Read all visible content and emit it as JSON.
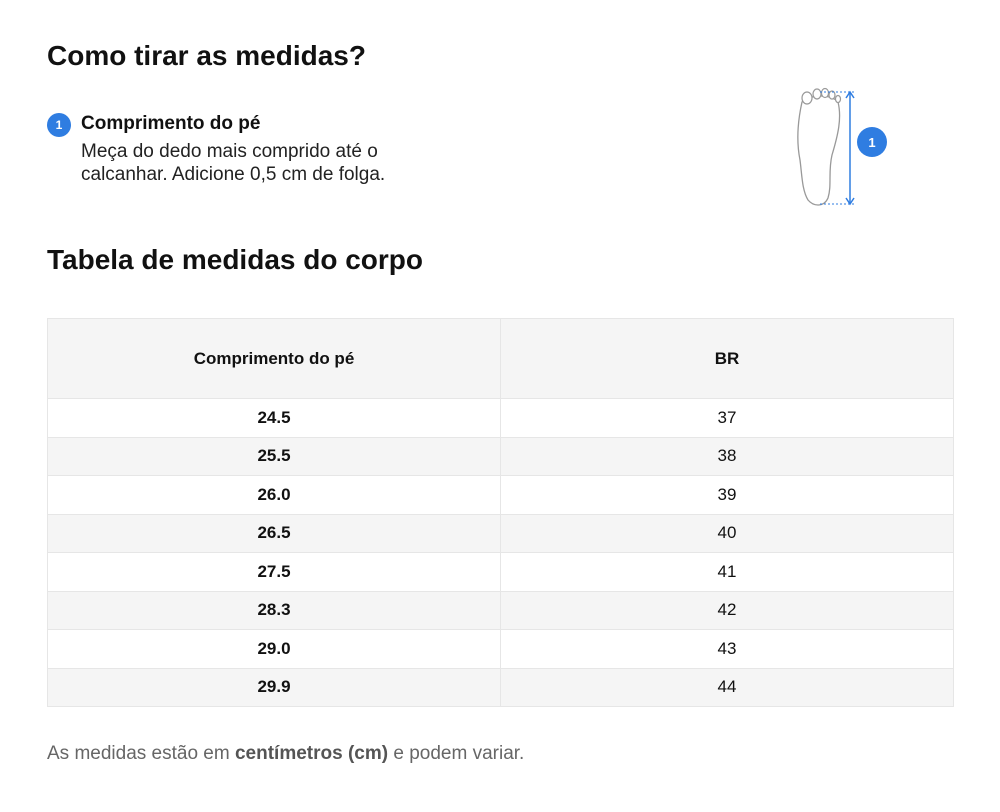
{
  "header": {
    "title": "Como tirar as medidas?"
  },
  "step": {
    "number": "1",
    "title": "Comprimento do pé",
    "text": "Meça do dedo mais comprido até o calcanhar. Adicione 0,5 cm de folga."
  },
  "figure": {
    "badge": "1"
  },
  "section": {
    "title": "Tabela de medidas do corpo"
  },
  "table": {
    "header": [
      "Comprimento do pé",
      "BR"
    ],
    "rows": [
      [
        "24.5",
        "37"
      ],
      [
        "25.5",
        "38"
      ],
      [
        "26.0",
        "39"
      ],
      [
        "26.5",
        "40"
      ],
      [
        "27.5",
        "41"
      ],
      [
        "28.3",
        "42"
      ],
      [
        "29.0",
        "43"
      ],
      [
        "29.9",
        "44"
      ]
    ]
  },
  "note": {
    "before": "As medidas estão em ",
    "bold": "centímetros (cm)",
    "after": " e podem variar."
  }
}
